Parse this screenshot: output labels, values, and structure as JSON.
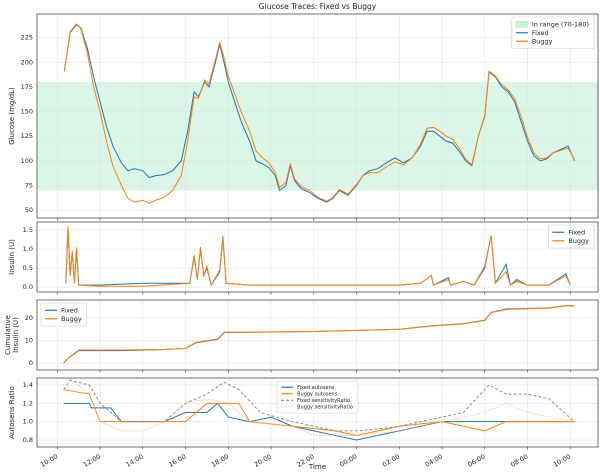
{
  "chart_data": [
    {
      "type": "line",
      "title": "Glucose Traces: Fixed vs Buggy",
      "ylabel": "Glucose (mg/dL)",
      "ylim": [
        42,
        249
      ],
      "yticks": [
        50,
        75,
        100,
        125,
        150,
        175,
        200,
        225
      ],
      "grid": true,
      "legend": "upper right",
      "band": {
        "name": "In range (70-180)",
        "range": [
          70,
          180
        ],
        "color": "#c9f2dc"
      },
      "series": [
        {
          "name": "Fixed",
          "color": "#1f77b4",
          "x": [
            10.33,
            10.6,
            10.9,
            11.1,
            11.4,
            11.7,
            12.0,
            12.3,
            12.6,
            13.0,
            13.3,
            13.6,
            14.0,
            14.3,
            14.6,
            15.0,
            15.4,
            15.8,
            16.1,
            16.4,
            16.6,
            16.9,
            17.1,
            17.4,
            17.6,
            17.8,
            18.0,
            18.3,
            18.6,
            19.0,
            19.3,
            19.6,
            19.9,
            20.2,
            20.4,
            20.7,
            20.9,
            21.1,
            21.4,
            21.8,
            22.2,
            22.6,
            22.9,
            23.2,
            23.6,
            24.0,
            24.3,
            24.6,
            25.0,
            25.4,
            25.8,
            26.2,
            26.6,
            27.0,
            27.3,
            27.6,
            27.9,
            28.2,
            28.5,
            28.8,
            29.1,
            29.4,
            29.7,
            30.0,
            30.2,
            30.5,
            30.8,
            31.1,
            31.4,
            31.7,
            32.0,
            32.3,
            32.6,
            32.9,
            33.2,
            33.6,
            33.9,
            34.2
          ],
          "values": [
            191,
            230,
            238,
            235,
            215,
            185,
            160,
            135,
            115,
            98,
            90,
            92,
            90,
            83,
            85,
            86,
            90,
            100,
            130,
            170,
            165,
            180,
            175,
            200,
            218,
            200,
            180,
            160,
            140,
            120,
            100,
            97,
            93,
            85,
            70,
            75,
            95,
            80,
            72,
            68,
            62,
            58,
            62,
            70,
            65,
            75,
            85,
            90,
            92,
            98,
            103,
            98,
            103,
            115,
            130,
            130,
            125,
            120,
            118,
            110,
            100,
            95,
            125,
            145,
            190,
            185,
            175,
            170,
            160,
            140,
            120,
            105,
            100,
            102,
            108,
            112,
            115,
            100
          ]
        },
        {
          "name": "Buggy",
          "color": "#ff7f0e",
          "x": [
            10.33,
            10.6,
            10.9,
            11.1,
            11.4,
            11.7,
            12.0,
            12.3,
            12.6,
            13.0,
            13.3,
            13.6,
            14.0,
            14.3,
            14.6,
            15.0,
            15.4,
            15.8,
            16.1,
            16.4,
            16.6,
            16.9,
            17.1,
            17.4,
            17.6,
            17.8,
            18.0,
            18.3,
            18.6,
            19.0,
            19.3,
            19.6,
            19.9,
            20.2,
            20.4,
            20.7,
            20.9,
            21.1,
            21.4,
            21.8,
            22.2,
            22.6,
            22.9,
            23.2,
            23.6,
            24.0,
            24.3,
            24.6,
            25.0,
            25.4,
            25.8,
            26.2,
            26.6,
            27.0,
            27.3,
            27.6,
            27.9,
            28.2,
            28.5,
            28.8,
            29.1,
            29.4,
            29.7,
            30.0,
            30.2,
            30.5,
            30.8,
            31.1,
            31.4,
            31.7,
            32.0,
            32.3,
            32.6,
            32.9,
            33.2,
            33.6,
            33.9,
            34.2
          ],
          "values": [
            191,
            231,
            239,
            234,
            210,
            175,
            150,
            120,
            95,
            75,
            62,
            58,
            60,
            57,
            60,
            63,
            70,
            85,
            120,
            165,
            163,
            182,
            178,
            203,
            220,
            205,
            186,
            168,
            150,
            130,
            110,
            103,
            98,
            88,
            73,
            78,
            97,
            82,
            74,
            70,
            63,
            59,
            63,
            71,
            66,
            76,
            85,
            88,
            88,
            94,
            99,
            96,
            103,
            117,
            133,
            134,
            130,
            125,
            122,
            113,
            102,
            96,
            125,
            146,
            191,
            186,
            177,
            172,
            163,
            145,
            124,
            108,
            102,
            103,
            108,
            111,
            113,
            101
          ]
        }
      ]
    },
    {
      "type": "line",
      "ylabel": "Insulin (U)",
      "ylim": [
        -0.13,
        1.71
      ],
      "yticks": [
        {
          "value": 0,
          "label": "0.0"
        },
        0.5,
        {
          "value": 1,
          "label": "1.0"
        },
        1.5
      ],
      "grid": true,
      "legend": "upper right",
      "series": [
        {
          "name": "Fixed",
          "color": "#1f77b4",
          "x": [
            10.4,
            10.5,
            10.6,
            10.7,
            10.8,
            10.9,
            11.0,
            12.0,
            14.0,
            16.2,
            16.4,
            16.55,
            16.7,
            16.85,
            17.0,
            17.2,
            17.6,
            17.75,
            17.9,
            19.0,
            22.0,
            26.0,
            27.0,
            27.5,
            27.6,
            28.3,
            28.4,
            29.0,
            29.5,
            30.0,
            30.3,
            30.5,
            31.0,
            31.2,
            31.5,
            32.0,
            33.0,
            33.8,
            34.0
          ],
          "values": [
            0.1,
            1.55,
            0.3,
            0.9,
            0.1,
            1.0,
            0.05,
            0.05,
            0.1,
            0.1,
            0.8,
            0.2,
            1.0,
            0.3,
            0.5,
            0.05,
            0.4,
            1.3,
            0.1,
            0.05,
            0.05,
            0.05,
            0.1,
            0.3,
            0.05,
            0.25,
            0.05,
            0.15,
            0.05,
            0.5,
            1.35,
            0.1,
            0.6,
            0.05,
            0.2,
            0.05,
            0.05,
            0.35,
            0.05
          ]
        },
        {
          "name": "Buggy",
          "color": "#ff7f0e",
          "x": [
            10.4,
            10.5,
            10.6,
            10.7,
            10.8,
            10.9,
            11.0,
            12.0,
            14.0,
            16.2,
            16.4,
            16.55,
            16.7,
            16.85,
            17.0,
            17.2,
            17.6,
            17.75,
            17.9,
            19.0,
            22.0,
            26.0,
            27.0,
            27.5,
            27.6,
            28.3,
            28.4,
            29.0,
            29.5,
            30.0,
            30.3,
            30.5,
            31.0,
            31.2,
            31.5,
            32.0,
            33.0,
            33.8,
            34.0
          ],
          "values": [
            0.1,
            1.6,
            0.3,
            0.95,
            0.1,
            1.05,
            0.05,
            0.02,
            0.02,
            0.1,
            0.85,
            0.2,
            1.05,
            0.3,
            0.55,
            0.05,
            0.45,
            1.35,
            0.1,
            0.05,
            0.05,
            0.05,
            0.1,
            0.3,
            0.05,
            0.2,
            0.05,
            0.15,
            0.05,
            0.55,
            1.35,
            0.1,
            0.4,
            0.05,
            0.15,
            0.05,
            0.05,
            0.3,
            0.05
          ]
        }
      ]
    },
    {
      "type": "line",
      "ylabel": [
        "Cumulative",
        "Insulin (U)"
      ],
      "ylim": [
        -3.1,
        28
      ],
      "yticks": [
        0,
        10,
        20
      ],
      "grid": true,
      "legend": "upper left",
      "series": [
        {
          "name": "Fixed",
          "color": "#1f77b4",
          "x": [
            10.3,
            10.5,
            11.0,
            13.0,
            15.0,
            16.0,
            16.5,
            17.5,
            17.8,
            22.0,
            26.0,
            27.5,
            29.0,
            30.0,
            30.3,
            31.0,
            33.0,
            33.8,
            34.2
          ],
          "values": [
            0,
            2,
            5.5,
            5.5,
            6,
            6.5,
            9,
            10.5,
            13.5,
            14,
            15,
            16.5,
            17.5,
            19,
            22.5,
            24,
            24.5,
            25.5,
            25.5
          ]
        },
        {
          "name": "Buggy",
          "color": "#ff7f0e",
          "x": [
            10.3,
            10.5,
            11.0,
            13.0,
            15.0,
            16.0,
            16.5,
            17.5,
            17.8,
            22.0,
            26.0,
            27.5,
            29.0,
            30.0,
            30.3,
            31.0,
            33.0,
            33.8,
            34.2
          ],
          "values": [
            0,
            2.1,
            5.8,
            5.8,
            6,
            6.5,
            9.2,
            10.7,
            13.7,
            14,
            15,
            16.4,
            17.4,
            18.9,
            22.4,
            23.8,
            24.4,
            25.4,
            25.4
          ]
        }
      ]
    },
    {
      "type": "line",
      "ylabel": "Autosens Ratio",
      "xlabel": "Time",
      "xlim": [
        9.05,
        35.3
      ],
      "xticks": [
        {
          "value": 10,
          "label": "10:00"
        },
        {
          "value": 12,
          "label": "12:00"
        },
        {
          "value": 14,
          "label": "14:00"
        },
        {
          "value": 16,
          "label": "16:00"
        },
        {
          "value": 18,
          "label": "18:00"
        },
        {
          "value": 20,
          "label": "20:00"
        },
        {
          "value": 22,
          "label": "22:00"
        },
        {
          "value": 24,
          "label": "00:00"
        },
        {
          "value": 26,
          "label": "02:00"
        },
        {
          "value": 28,
          "label": "04:00"
        },
        {
          "value": 30,
          "label": "06:00"
        },
        {
          "value": 32,
          "label": "08:00"
        },
        {
          "value": 34,
          "label": "10:00"
        }
      ],
      "ylim": [
        0.724,
        1.476
      ],
      "yticks": [
        0.8,
        {
          "value": 1,
          "label": "1.0"
        },
        1.2,
        1.4
      ],
      "grid": true,
      "legend": "upper center",
      "series": [
        {
          "name": "Fixed autosens",
          "color": "#1f77b4",
          "dash": "solid",
          "x": [
            10.3,
            11.5,
            11.6,
            12.5,
            13.0,
            15.0,
            16.0,
            17.0,
            17.5,
            18.0,
            19.0,
            20.0,
            21.0,
            22.0,
            23.0,
            24.0,
            25.0,
            26.0,
            27.0,
            28.0,
            30.0,
            34.2
          ],
          "values": [
            1.2,
            1.2,
            1.15,
            1.15,
            1.0,
            1.0,
            1.1,
            1.1,
            1.2,
            1.05,
            1.0,
            1.05,
            0.95,
            0.9,
            0.85,
            0.8,
            0.85,
            0.9,
            0.95,
            1.0,
            1.0,
            1.0
          ]
        },
        {
          "name": "Buggy autosens",
          "color": "#ff7f0e",
          "dash": "solid",
          "x": [
            10.3,
            11.5,
            12.0,
            16.0,
            17.0,
            18.5,
            19.0,
            23.0,
            24.0,
            25.0,
            26.0,
            28.0,
            29.0,
            30.0,
            31.0,
            34.2
          ],
          "values": [
            1.35,
            1.3,
            1.0,
            1.0,
            1.2,
            1.2,
            1.0,
            0.9,
            0.85,
            0.9,
            0.95,
            1.0,
            0.95,
            0.9,
            1.0,
            1.0
          ]
        },
        {
          "name": "Fixed sensitivityRatio",
          "color": "#8c8c8c",
          "dash": "dashed",
          "x": [
            10.3,
            10.6,
            11.5,
            12.0,
            13.0,
            15.0,
            16.0,
            17.0,
            17.8,
            18.5,
            19.5,
            21.0,
            22.0,
            23.0,
            24.0,
            25.0,
            26.0,
            27.0,
            29.0,
            30.2,
            31.0,
            32.0,
            33.0,
            34.2
          ],
          "values": [
            1.35,
            1.45,
            1.4,
            1.2,
            1.0,
            1.0,
            1.2,
            1.3,
            1.43,
            1.35,
            1.1,
            1.0,
            0.95,
            0.9,
            0.9,
            0.92,
            0.95,
            1.0,
            1.1,
            1.4,
            1.3,
            1.3,
            1.25,
            1.0
          ]
        },
        {
          "name": "Buggy sensitivityRatio",
          "color": "#ffb27a",
          "dash": "dotted",
          "x": [
            10.3,
            10.6,
            11.5,
            12.0,
            13.0,
            14.0,
            15.0,
            16.0,
            17.0,
            18.0,
            19.0,
            21.0,
            22.0,
            24.0,
            26.0,
            28.0,
            30.0,
            31.0,
            32.0,
            34.2
          ],
          "values": [
            1.4,
            1.47,
            1.3,
            1.0,
            0.9,
            0.9,
            1.0,
            1.2,
            1.25,
            1.2,
            1.0,
            0.95,
            0.85,
            0.85,
            0.9,
            1.0,
            1.1,
            1.2,
            1.1,
            1.0
          ]
        }
      ]
    }
  ]
}
